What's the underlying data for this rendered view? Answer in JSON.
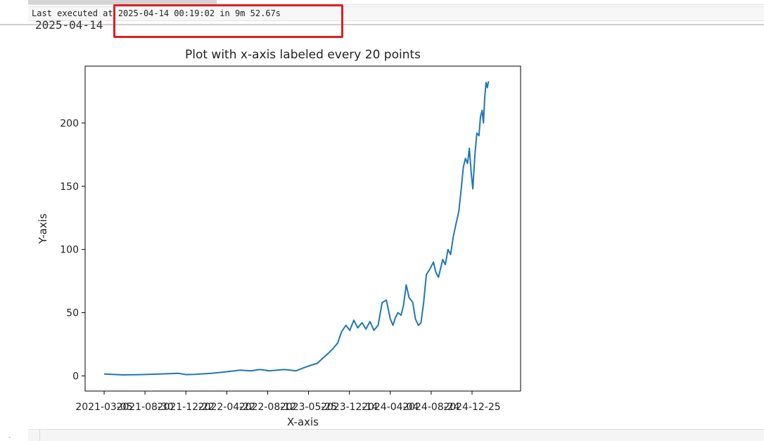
{
  "notebook": {
    "exec_status": "Last executed at 2025-04-14 00:19:02 in 9m 52.67s",
    "date_output": "2025-04-14",
    "next_prompt": "-"
  },
  "colors": {
    "line": "#1f77b4",
    "highlight": "#e02020"
  },
  "chart_data": {
    "type": "line",
    "title": "Plot with x-axis labeled every 20 points",
    "xlabel": "X-axis",
    "ylabel": "Y-axis",
    "ylim": [
      -12,
      245
    ],
    "yticks": [
      0,
      50,
      100,
      150,
      200
    ],
    "xticks": [
      "2021-03-05",
      "2021-08-30",
      "2021-12-22",
      "2022-04-22",
      "2022-08-12",
      "2023-05-25",
      "2023-12-14",
      "2024-04-04",
      "2024-08-24",
      "2024-12-25"
    ],
    "grid": false,
    "series": [
      {
        "x": [
          "2021-03-05",
          "2021-05-15",
          "2021-07-20",
          "2021-10-01",
          "2021-12-10",
          "2022-01-10",
          "2022-02-10",
          "2022-04-15",
          "2022-06-01",
          "2022-08-01",
          "2022-09-10",
          "2022-10-15",
          "2022-11-20",
          "2023-01-15",
          "2023-03-01",
          "2023-03-25",
          "2023-04-20",
          "2023-05-20",
          "2023-06-10",
          "2023-07-01",
          "2023-07-20",
          "2023-08-05",
          "2023-08-20",
          "2023-09-05",
          "2023-09-20",
          "2023-10-05",
          "2023-10-20",
          "2023-11-05",
          "2023-11-20",
          "2023-12-05",
          "2023-12-20",
          "2024-01-05",
          "2024-01-20",
          "2024-02-05",
          "2024-02-20",
          "2024-03-01",
          "2024-03-10",
          "2024-03-20",
          "2024-04-01",
          "2024-04-10",
          "2024-04-20",
          "2024-05-01",
          "2024-05-15",
          "2024-05-25",
          "2024-06-05",
          "2024-06-15",
          "2024-06-25",
          "2024-07-05",
          "2024-07-20",
          "2024-08-01",
          "2024-08-10",
          "2024-08-20",
          "2024-08-28",
          "2024-09-05",
          "2024-09-15",
          "2024-09-25",
          "2024-10-05",
          "2024-10-15",
          "2024-10-25",
          "2024-11-05",
          "2024-11-15",
          "2024-11-22",
          "2024-11-30",
          "2024-12-08",
          "2024-12-15",
          "2024-12-22",
          "2024-12-28",
          "2025-01-05",
          "2025-01-12",
          "2025-01-20",
          "2025-01-26",
          "2025-02-01",
          "2025-02-06",
          "2025-02-11",
          "2025-02-16",
          "2025-02-21",
          "2025-02-25"
        ],
        "values": [
          1.5,
          0.8,
          1.0,
          1.5,
          2.0,
          1.0,
          1.2,
          2.0,
          3.0,
          4.5,
          4.0,
          5.0,
          4.0,
          5.0,
          4.0,
          6.0,
          8.0,
          10.0,
          14.0,
          18.0,
          22.0,
          26.0,
          35.0,
          40.0,
          36.0,
          44.0,
          38.0,
          42.0,
          37.0,
          43.0,
          36.0,
          40.0,
          58.0,
          60.0,
          45.0,
          40.0,
          46.0,
          50.0,
          48.0,
          56.0,
          72.0,
          62.0,
          58.0,
          45.0,
          40.0,
          42.0,
          58.0,
          80.0,
          85.0,
          90.0,
          82.0,
          78.0,
          85.0,
          92.0,
          88.0,
          100.0,
          96.0,
          110.0,
          120.0,
          130.0,
          150.0,
          165.0,
          172.0,
          168.0,
          180.0,
          160.0,
          148.0,
          175.0,
          192.0,
          190.0,
          205.0,
          210.0,
          200.0,
          220.0,
          232.0,
          228.0,
          233.0
        ]
      }
    ]
  }
}
